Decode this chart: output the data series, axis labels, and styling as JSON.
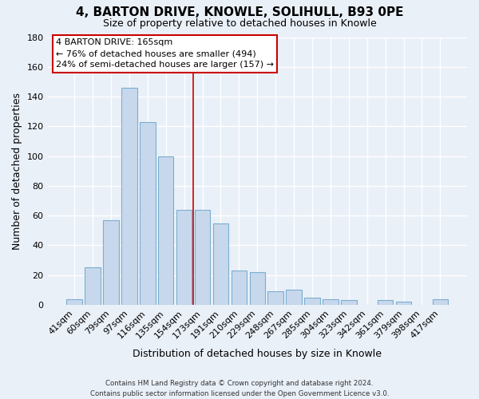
{
  "title": "4, BARTON DRIVE, KNOWLE, SOLIHULL, B93 0PE",
  "subtitle": "Size of property relative to detached houses in Knowle",
  "xlabel": "Distribution of detached houses by size in Knowle",
  "ylabel": "Number of detached properties",
  "footer_line1": "Contains HM Land Registry data © Crown copyright and database right 2024.",
  "footer_line2": "Contains public sector information licensed under the Open Government Licence v3.0.",
  "bar_labels": [
    "41sqm",
    "60sqm",
    "79sqm",
    "97sqm",
    "116sqm",
    "135sqm",
    "154sqm",
    "173sqm",
    "191sqm",
    "210sqm",
    "229sqm",
    "248sqm",
    "267sqm",
    "285sqm",
    "304sqm",
    "323sqm",
    "342sqm",
    "361sqm",
    "379sqm",
    "398sqm",
    "417sqm"
  ],
  "bar_values": [
    4,
    25,
    57,
    146,
    123,
    100,
    64,
    64,
    55,
    23,
    22,
    9,
    10,
    5,
    4,
    3,
    0,
    3,
    2,
    0,
    4
  ],
  "bar_color": "#c8d8ec",
  "bar_edge_color": "#7aaed0",
  "annotation_title": "4 BARTON DRIVE: 165sqm",
  "annotation_line1": "← 76% of detached houses are smaller (494)",
  "annotation_line2": "24% of semi-detached houses are larger (157) →",
  "annotation_box_edge": "#cc0000",
  "annotation_box_face": "white",
  "vline_color": "#cc0000",
  "ylim": [
    0,
    180
  ],
  "yticks": [
    0,
    20,
    40,
    60,
    80,
    100,
    120,
    140,
    160,
    180
  ],
  "background_color": "#eaf0f8",
  "grid_color": "#ffffff",
  "property_bar_index": 6.5
}
